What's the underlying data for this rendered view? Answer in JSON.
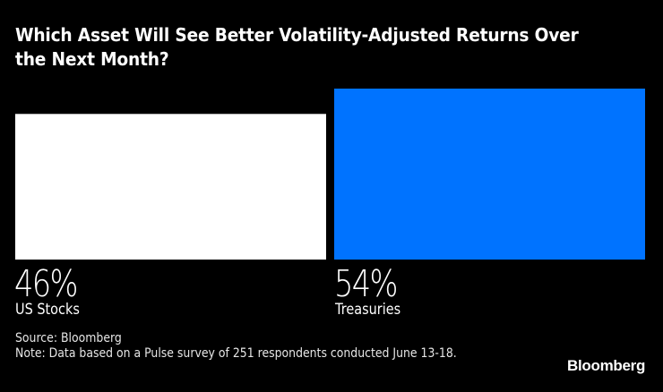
{
  "chart_data": {
    "type": "bar",
    "title": "Which Asset Will See Better Volatility-Adjusted Returns Over the Next Month?",
    "categories": [
      "US Stocks",
      "Treasuries"
    ],
    "values": [
      46,
      54
    ],
    "value_labels": [
      "46%",
      "54%"
    ],
    "colors": [
      "#FFFFFF",
      "#0073FF"
    ],
    "unit": "%",
    "xlabel": "",
    "ylabel": "",
    "ylim": [
      0,
      54
    ],
    "grid": false,
    "legend": "none"
  },
  "footer": {
    "source": "Source: Bloomberg",
    "note": "Note: Data based on a Pulse survey of 251 respondents conducted June 13-18."
  },
  "brand": {
    "logo": "Bloomberg"
  }
}
